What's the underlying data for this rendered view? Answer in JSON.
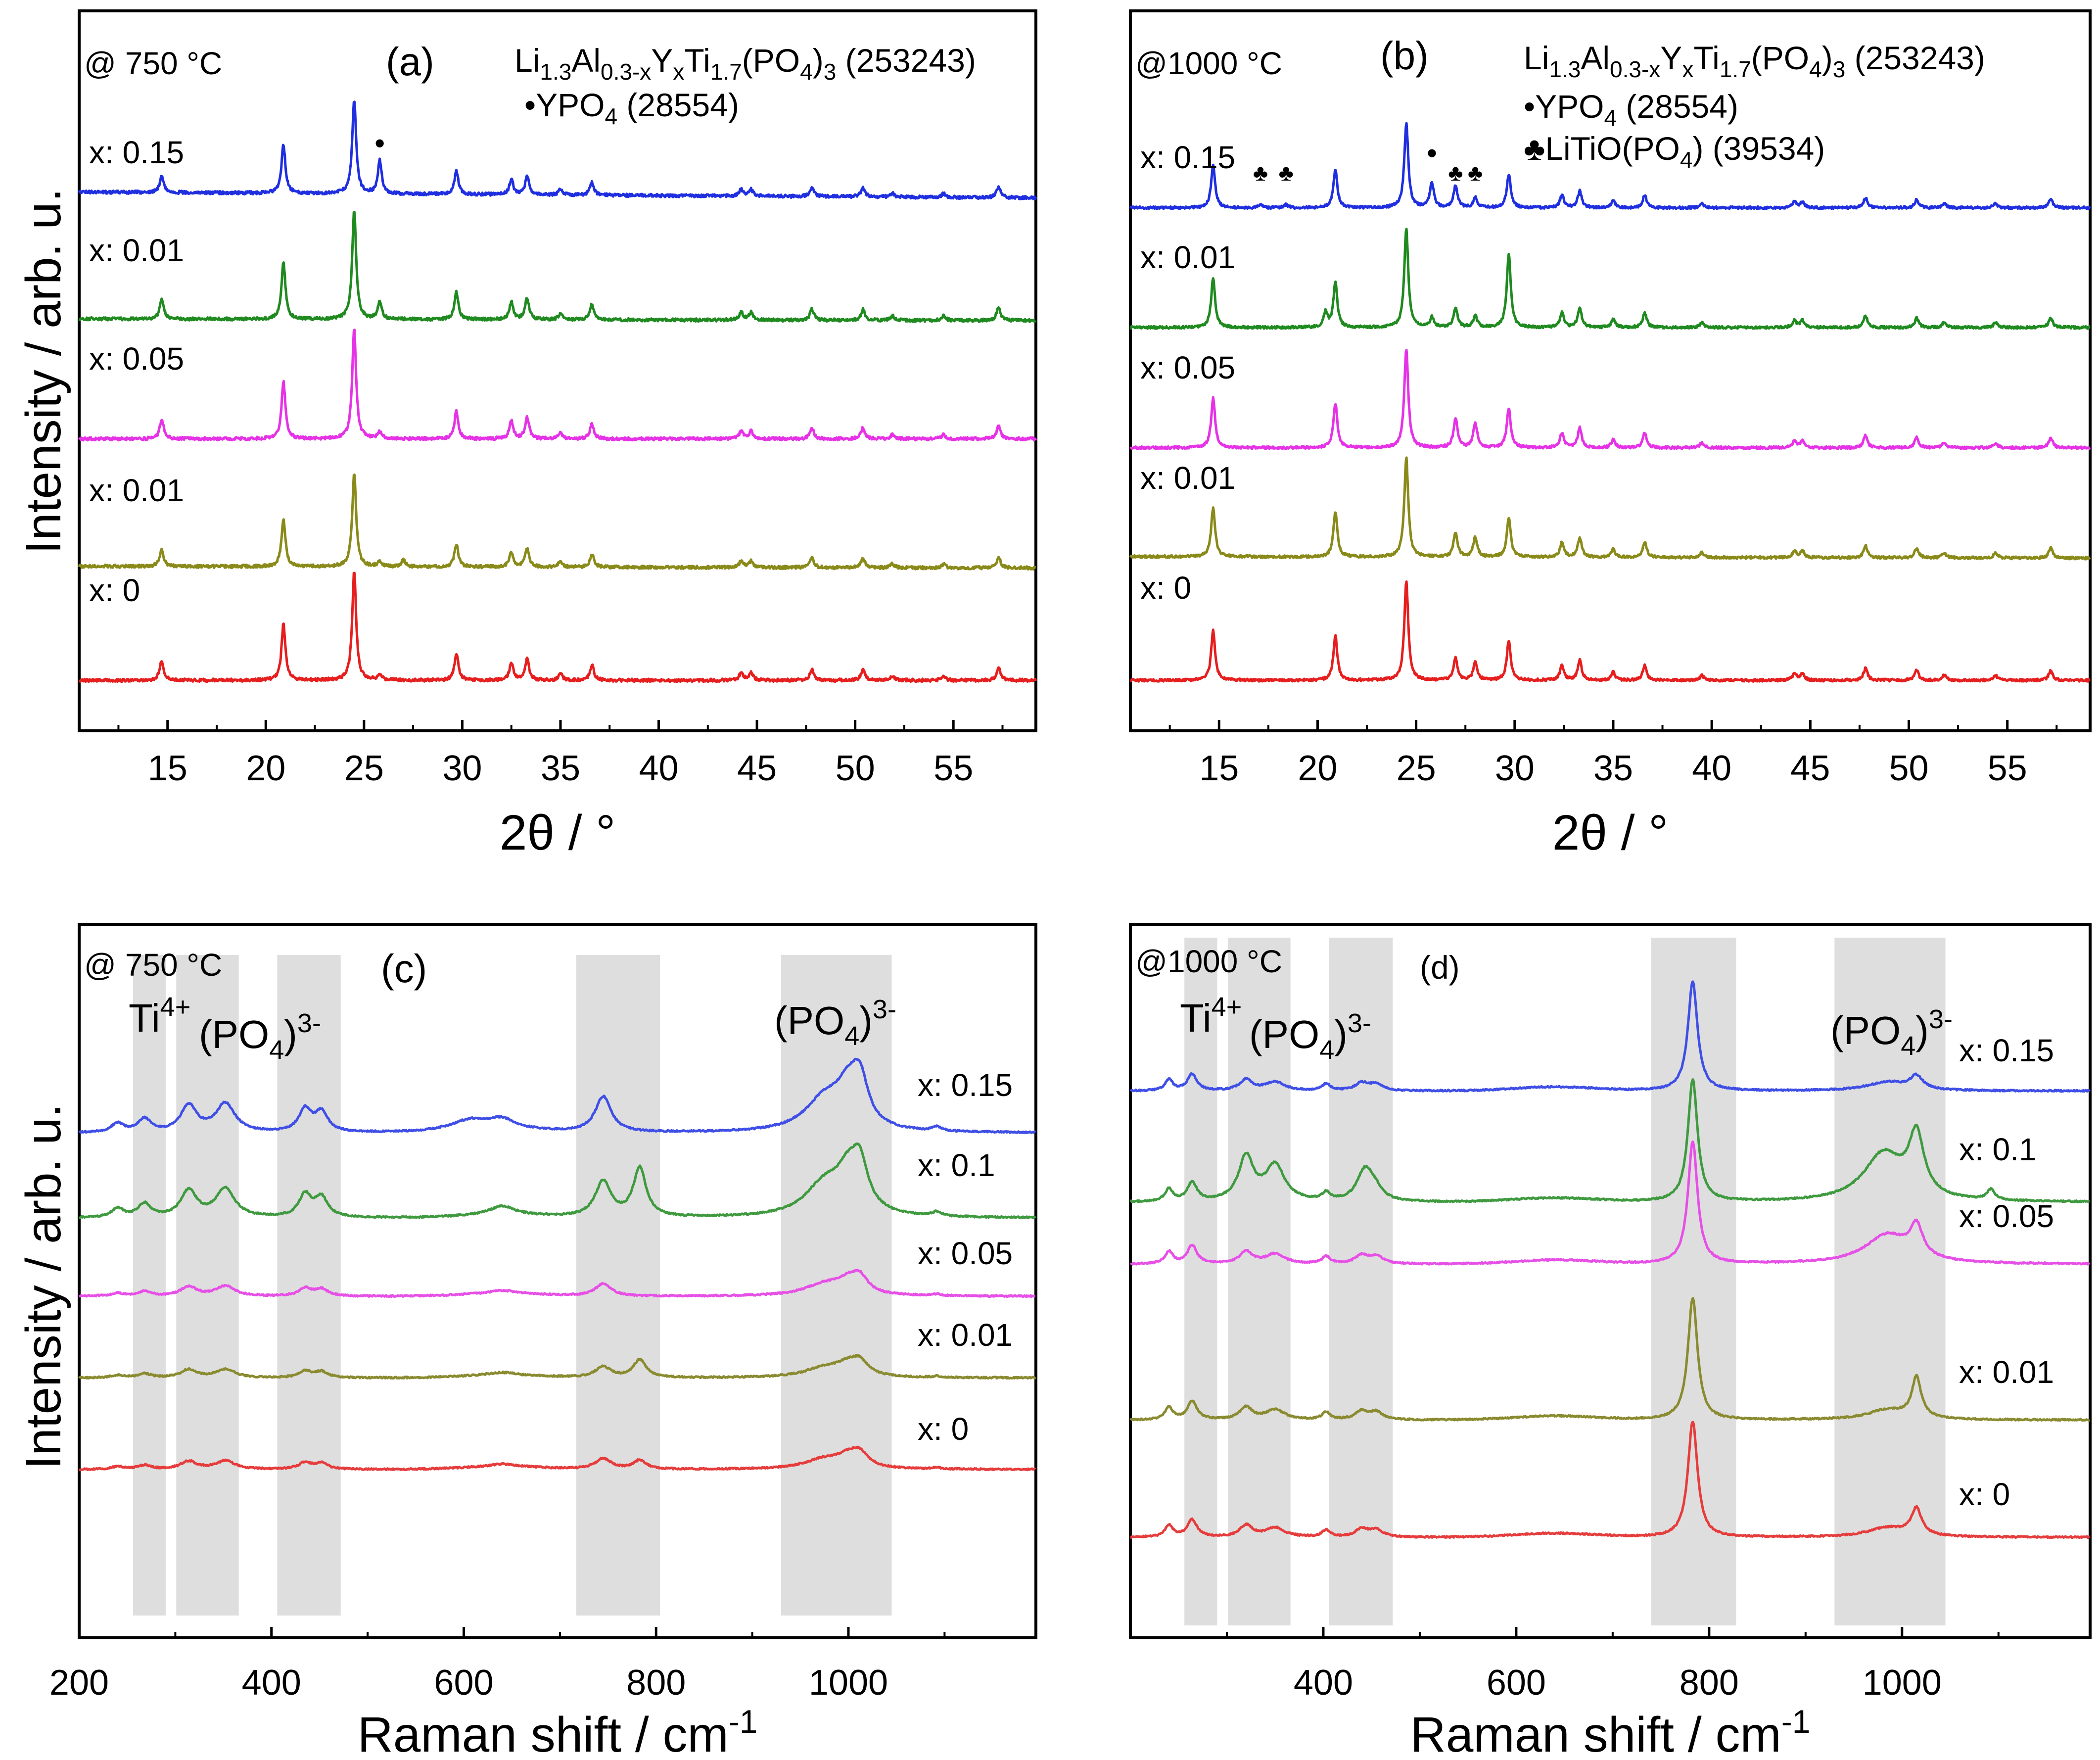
{
  "figure": {
    "y_axis_label": "Intensity / arb. u."
  },
  "chart_data": [
    {
      "id": "a",
      "type": "line",
      "panel_label": "(a)",
      "temperature": "@ 750 °C",
      "xlabel": "2θ / °",
      "ylabel": "Intensity / arb. u.",
      "xlim": [
        10.5,
        59.2
      ],
      "xticks": [
        15,
        20,
        25,
        30,
        35,
        40,
        45,
        50,
        55
      ],
      "legend": [
        {
          "text": "Li1.3Al0.3-xYxTi1.7(PO4)3 (253243)"
        },
        {
          "text": "•YPO4 (28554)"
        }
      ],
      "markers": [
        {
          "symbol": "•",
          "x": 25.8,
          "series": "x: 0.15"
        }
      ],
      "peaks": [
        {
          "x": 14.7,
          "h": 0.18
        },
        {
          "x": 20.9,
          "h": 0.52
        },
        {
          "x": 24.5,
          "h": 1.0
        },
        {
          "x": 25.8,
          "h": 0.06
        },
        {
          "x": 29.7,
          "h": 0.25
        },
        {
          "x": 32.5,
          "h": 0.16
        },
        {
          "x": 33.3,
          "h": 0.2
        },
        {
          "x": 35.0,
          "h": 0.06
        },
        {
          "x": 36.6,
          "h": 0.14
        },
        {
          "x": 44.2,
          "h": 0.07
        },
        {
          "x": 44.7,
          "h": 0.07
        },
        {
          "x": 47.8,
          "h": 0.1
        },
        {
          "x": 50.4,
          "h": 0.1
        },
        {
          "x": 51.9,
          "h": 0.04
        },
        {
          "x": 54.5,
          "h": 0.04
        },
        {
          "x": 57.3,
          "h": 0.12
        }
      ],
      "series": [
        {
          "name": "x: 0.15",
          "color": "#1f2fe0",
          "scale": 0.85,
          "slope": 0.2,
          "extra": [
            {
              "x": 25.8,
              "h": 0.25
            }
          ]
        },
        {
          "name": "x: 0.01",
          "color": "#1f8a1f",
          "scale": 1.0,
          "slope": 0.06,
          "extra": [
            {
              "x": 25.8,
              "h": 0.1
            }
          ]
        },
        {
          "name": "x: 0.05",
          "color": "#e632e6",
          "scale": 1.0,
          "slope": 0.0,
          "extra": []
        },
        {
          "name": "x: 0.01",
          "color": "#8a8a1a",
          "scale": 0.85,
          "slope": 0.06,
          "extra": [
            {
              "x": 27.0,
              "h": 0.06
            }
          ]
        },
        {
          "name": "x: 0",
          "color": "#e61e1e",
          "scale": 1.0,
          "slope": 0.0,
          "extra": []
        }
      ]
    },
    {
      "id": "b",
      "type": "line",
      "panel_label": "(b)",
      "temperature": "@1000 °C",
      "xlabel": "2θ / °",
      "ylabel": "",
      "xlim": [
        10.5,
        59.2
      ],
      "xticks": [
        15,
        20,
        25,
        30,
        35,
        40,
        45,
        50,
        55
      ],
      "legend": [
        {
          "text": "Li1.3Al0.3-xYxTi1.7(PO4)3 (253243)"
        },
        {
          "text": "•YPO4 (28554)"
        },
        {
          "text": "♣LiTiO(PO4) (39534)"
        }
      ],
      "markers": [
        {
          "symbol": "♣",
          "x": 17.1,
          "series": "x: 0.15"
        },
        {
          "symbol": "♣",
          "x": 18.4,
          "series": "x: 0.15"
        },
        {
          "symbol": "•",
          "x": 25.8,
          "series": "x: 0.15"
        },
        {
          "symbol": "♣",
          "x": 27.0,
          "series": "x: 0.15"
        },
        {
          "symbol": "♣",
          "x": 28.0,
          "series": "x: 0.15"
        }
      ],
      "peaks": [
        {
          "x": 14.7,
          "h": 0.5
        },
        {
          "x": 20.9,
          "h": 0.45
        },
        {
          "x": 24.5,
          "h": 1.0
        },
        {
          "x": 29.7,
          "h": 0.4
        },
        {
          "x": 32.4,
          "h": 0.15
        },
        {
          "x": 33.3,
          "h": 0.2
        },
        {
          "x": 35.0,
          "h": 0.08
        },
        {
          "x": 36.6,
          "h": 0.15
        },
        {
          "x": 39.5,
          "h": 0.05
        },
        {
          "x": 44.2,
          "h": 0.07
        },
        {
          "x": 44.6,
          "h": 0.07
        },
        {
          "x": 47.8,
          "h": 0.12
        },
        {
          "x": 50.4,
          "h": 0.1
        },
        {
          "x": 51.8,
          "h": 0.05
        },
        {
          "x": 54.4,
          "h": 0.05
        },
        {
          "x": 57.2,
          "h": 0.1
        }
      ],
      "series": [
        {
          "name": "x: 0.15",
          "color": "#1f2fe0",
          "scale": 0.85,
          "slope": 0.0,
          "extra": [
            {
              "x": 25.8,
              "h": 0.25
            },
            {
              "x": 27.0,
              "h": 0.22
            },
            {
              "x": 28.0,
              "h": 0.1
            },
            {
              "x": 17.1,
              "h": 0.03
            },
            {
              "x": 18.4,
              "h": 0.03
            }
          ]
        },
        {
          "name": "x: 0.01",
          "color": "#1f8a1f",
          "scale": 1.0,
          "slope": 0.0,
          "extra": [
            {
              "x": 20.4,
              "h": 0.15
            },
            {
              "x": 25.8,
              "h": 0.1
            },
            {
              "x": 27.0,
              "h": 0.2
            },
            {
              "x": 28.0,
              "h": 0.12
            },
            {
              "x": 29.7,
              "h": 0.35
            }
          ]
        },
        {
          "name": "x: 0.05",
          "color": "#e632e6",
          "scale": 1.0,
          "slope": 0.0,
          "extra": [
            {
              "x": 27.0,
              "h": 0.3
            },
            {
              "x": 28.0,
              "h": 0.25
            }
          ]
        },
        {
          "name": "x: 0.01",
          "color": "#8a8a1a",
          "scale": 1.0,
          "slope": 0.05,
          "extra": [
            {
              "x": 27.0,
              "h": 0.25
            },
            {
              "x": 28.0,
              "h": 0.2
            }
          ]
        },
        {
          "name": "x: 0",
          "color": "#e61e1e",
          "scale": 1.0,
          "slope": 0.0,
          "extra": [
            {
              "x": 27.0,
              "h": 0.22
            },
            {
              "x": 28.0,
              "h": 0.18
            }
          ]
        }
      ]
    },
    {
      "id": "c",
      "type": "line",
      "panel_label": "(c)",
      "temperature": "@ 750 °C",
      "xlabel": "Raman shift / cm-1",
      "ylabel": "Intensity / arb. u.",
      "xlim": [
        200,
        1195
      ],
      "xticks": [
        200,
        400,
        600,
        800,
        1000
      ],
      "band_labels": [
        {
          "text": "Ti4+",
          "x": 278
        },
        {
          "text": "(PO4)3-",
          "x": 373
        },
        {
          "text": "(PO4)3-",
          "x": 985
        }
      ],
      "shaded_bands": [
        [
          256,
          290
        ],
        [
          301,
          366
        ],
        [
          406,
          472
        ],
        [
          717,
          804
        ],
        [
          930,
          1045
        ]
      ],
      "peaks": [
        {
          "x": 240,
          "h": 0.1,
          "w": 8
        },
        {
          "x": 268,
          "h": 0.15,
          "w": 8
        },
        {
          "x": 314,
          "h": 0.3,
          "w": 10
        },
        {
          "x": 352,
          "h": 0.32,
          "w": 12
        },
        {
          "x": 435,
          "h": 0.25,
          "w": 8
        },
        {
          "x": 452,
          "h": 0.22,
          "w": 8
        },
        {
          "x": 640,
          "h": 0.1,
          "w": 15
        },
        {
          "x": 745,
          "h": 0.4,
          "w": 10
        },
        {
          "x": 975,
          "h": 0.35,
          "w": 25
        },
        {
          "x": 1000,
          "h": 0.4,
          "w": 15
        },
        {
          "x": 1012,
          "h": 0.45,
          "w": 10
        },
        {
          "x": 1092,
          "h": 0.05,
          "w": 5
        }
      ],
      "series": [
        {
          "name": "x: 0.15",
          "color": "#3f4fe6",
          "scale": 1.0,
          "extra": [
            {
              "x": 607,
              "h": 0.12,
              "w": 25
            }
          ]
        },
        {
          "name": "x: 0.1",
          "color": "#3f9a3f",
          "scale": 1.0,
          "extra": [
            {
              "x": 783,
              "h": 0.55,
              "w": 8
            }
          ]
        },
        {
          "name": "x: 0.05",
          "color": "#e650e6",
          "scale": 0.35,
          "extra": []
        },
        {
          "name": "x: 0.01",
          "color": "#8a8a30",
          "scale": 0.3,
          "extra": [
            {
              "x": 783,
              "h": 0.2,
              "w": 8
            }
          ]
        },
        {
          "name": "x: 0",
          "color": "#e63c3c",
          "scale": 0.3,
          "extra": [
            {
              "x": 783,
              "h": 0.1,
              "w": 8
            }
          ]
        }
      ]
    },
    {
      "id": "d",
      "type": "line",
      "panel_label": "(d)",
      "temperature": "@1000 °C",
      "xlabel": "Raman shift / cm-1",
      "ylabel": "",
      "xlim": [
        200,
        1195
      ],
      "xticks": [
        400,
        600,
        800,
        1000
      ],
      "band_labels": [
        {
          "text": "Ti4+",
          "x": 278
        },
        {
          "text": "(PO4)3-",
          "x": 373
        },
        {
          "text": "(PO4)3-",
          "x": 985
        }
      ],
      "shaded_bands": [
        [
          256,
          290
        ],
        [
          301,
          366
        ],
        [
          406,
          472
        ],
        [
          740,
          828
        ],
        [
          930,
          1045
        ]
      ],
      "peaks": [
        {
          "x": 240,
          "h": 0.1,
          "w": 5
        },
        {
          "x": 264,
          "h": 0.15,
          "w": 6
        },
        {
          "x": 320,
          "h": 0.1,
          "w": 8
        },
        {
          "x": 350,
          "h": 0.08,
          "w": 12
        },
        {
          "x": 403,
          "h": 0.06,
          "w": 5
        },
        {
          "x": 440,
          "h": 0.07,
          "w": 8
        },
        {
          "x": 455,
          "h": 0.06,
          "w": 8
        },
        {
          "x": 783,
          "h": 1.0,
          "w": 6
        },
        {
          "x": 985,
          "h": 0.08,
          "w": 25
        },
        {
          "x": 1015,
          "h": 0.12,
          "w": 8
        }
      ],
      "series": [
        {
          "name": "x: 0.15",
          "color": "#3f4fe6",
          "scale": 0.85,
          "extra": []
        },
        {
          "name": "x: 0.1",
          "color": "#3f9a3f",
          "scale": 0.95,
          "extra": [
            {
              "x": 320,
              "h": 0.25,
              "w": 10
            },
            {
              "x": 350,
              "h": 0.2,
              "w": 12
            },
            {
              "x": 445,
              "h": 0.2,
              "w": 10
            },
            {
              "x": 980,
              "h": 0.3,
              "w": 25
            },
            {
              "x": 1015,
              "h": 0.35,
              "w": 10
            },
            {
              "x": 1092,
              "h": 0.08,
              "w": 5
            }
          ]
        },
        {
          "name": "x: 0.05",
          "color": "#e650e6",
          "scale": 0.95,
          "extra": [
            {
              "x": 985,
              "h": 0.15,
              "w": 30
            },
            {
              "x": 1015,
              "h": 0.12,
              "w": 8
            }
          ]
        },
        {
          "name": "x: 0.01",
          "color": "#8a8a30",
          "scale": 0.95,
          "extra": [
            {
              "x": 1015,
              "h": 0.2,
              "w": 5
            }
          ]
        },
        {
          "name": "x: 0",
          "color": "#e63c3c",
          "scale": 0.9,
          "extra": [
            {
              "x": 1015,
              "h": 0.1,
              "w": 5
            }
          ]
        }
      ]
    }
  ]
}
